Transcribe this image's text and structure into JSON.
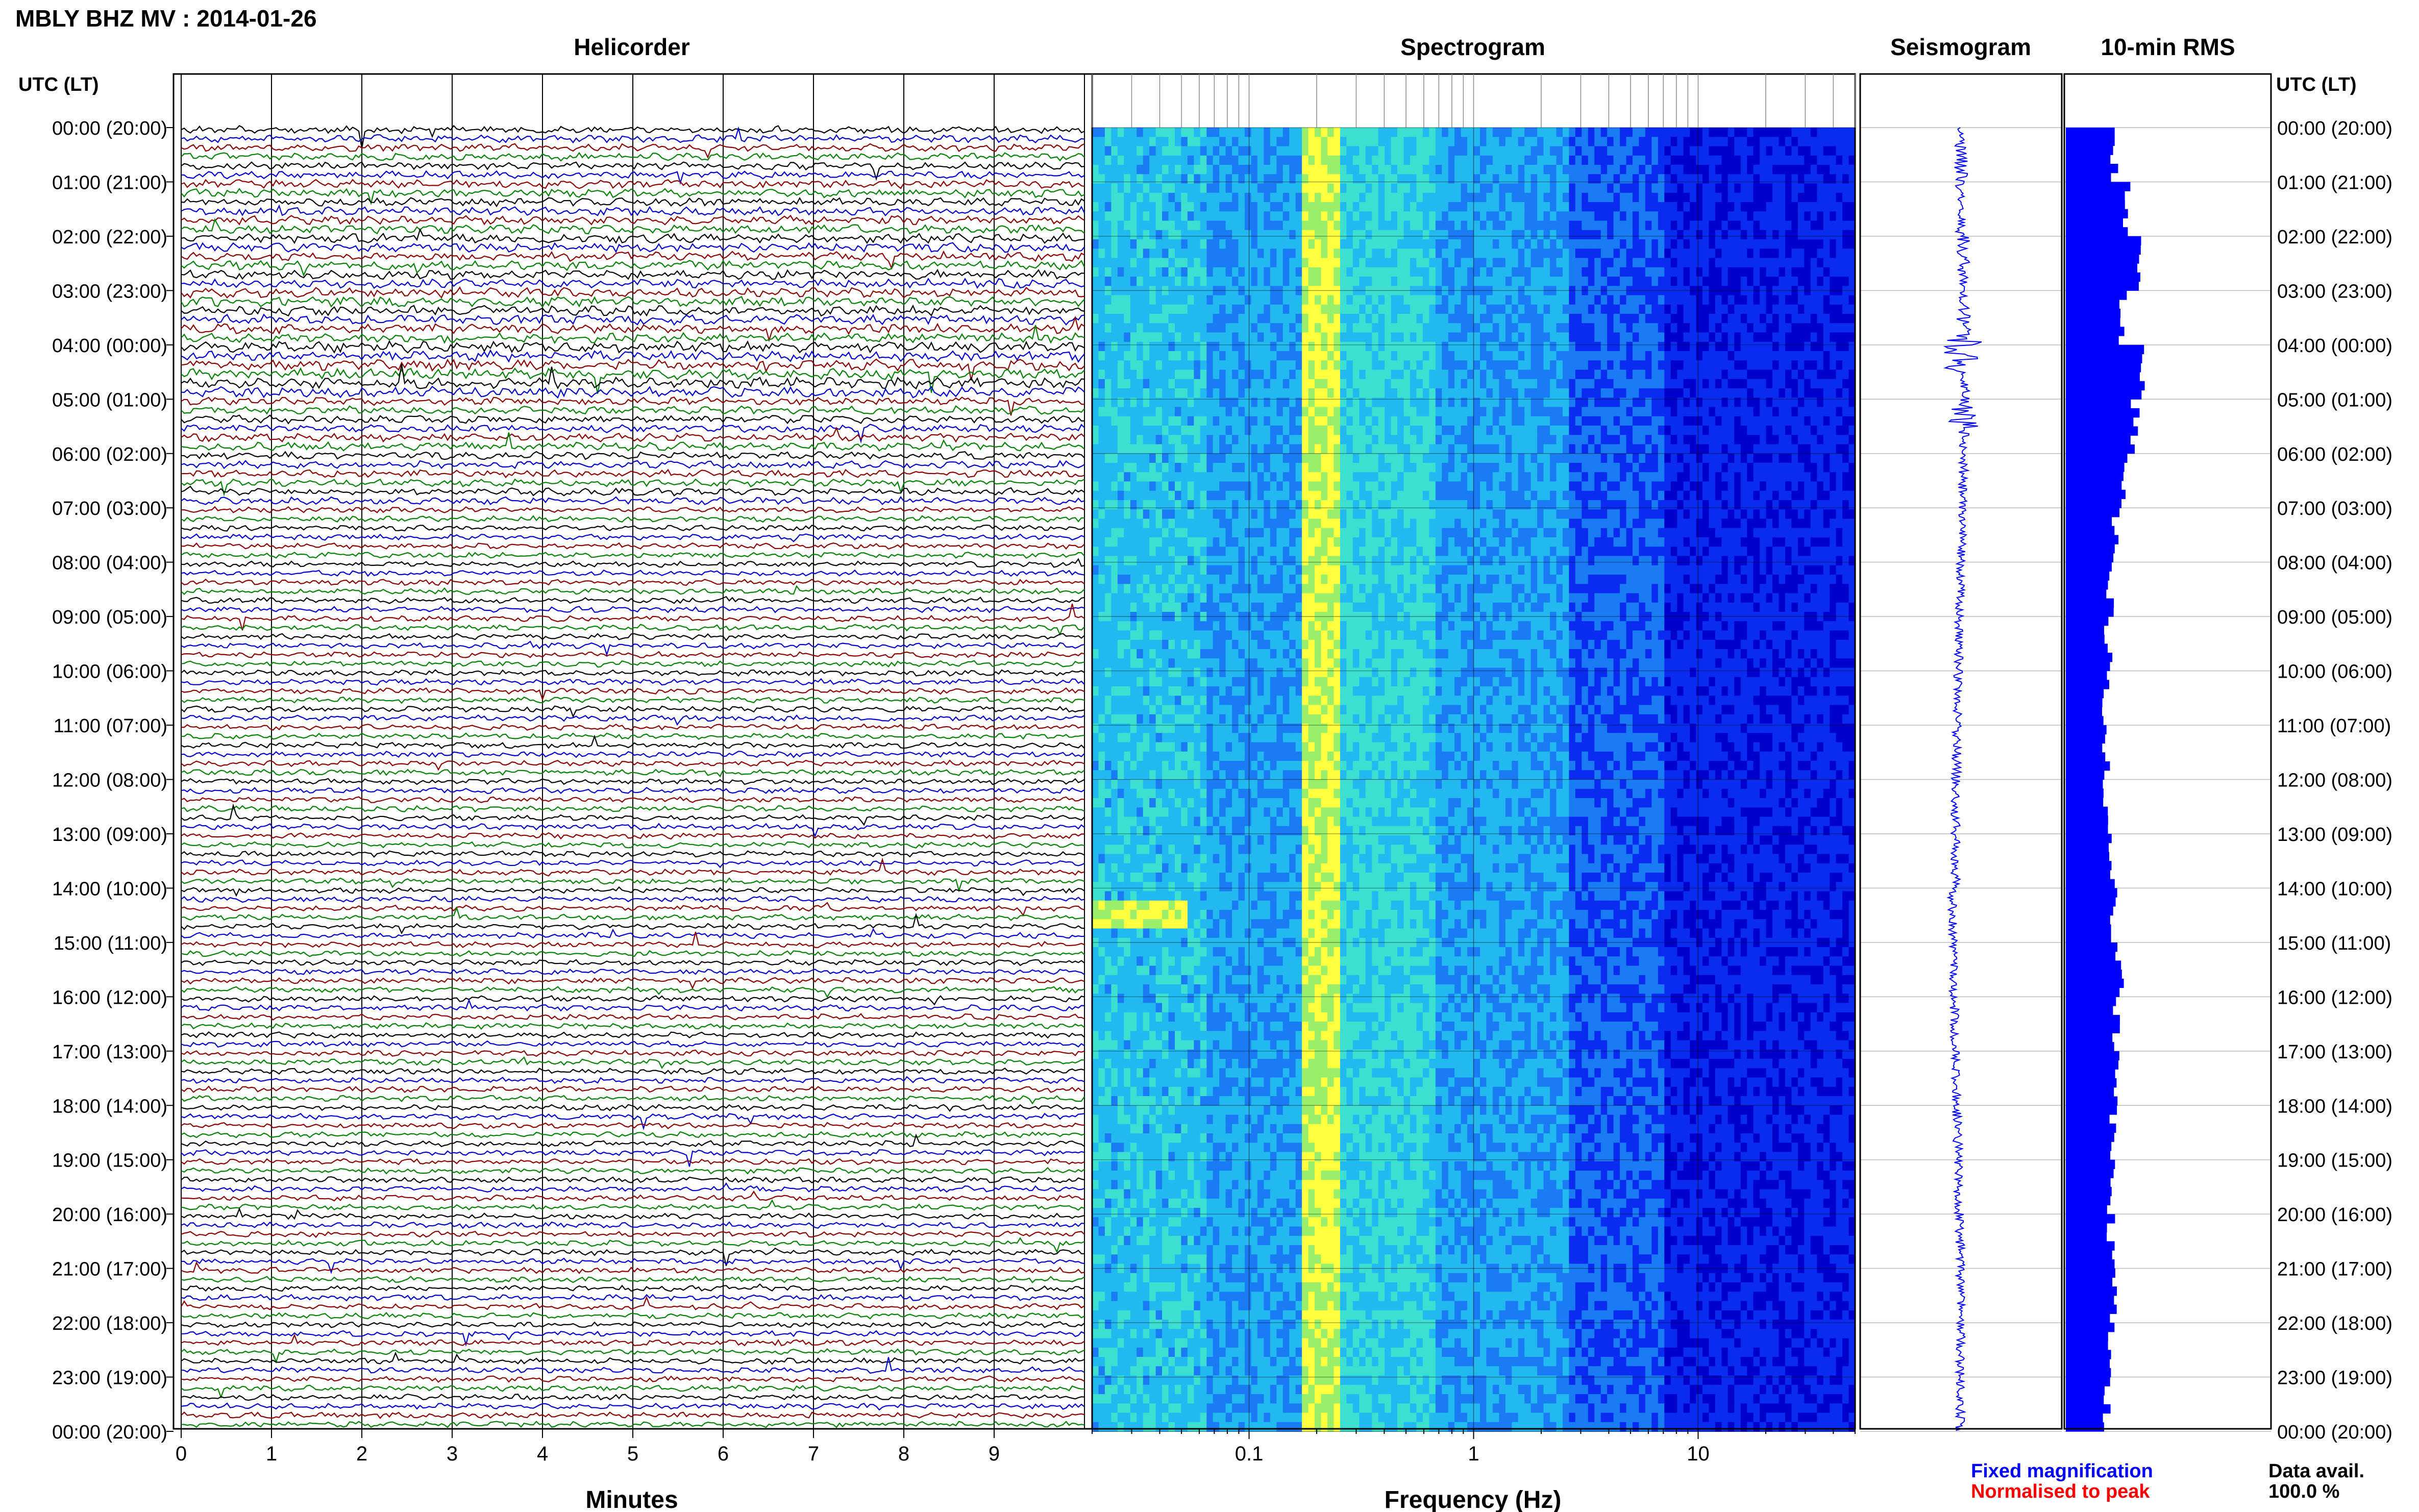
{
  "header": {
    "title": "MBLY BHZ MV : 2014-01-26"
  },
  "chart_data": [
    {
      "type": "line",
      "panel": "helicorder",
      "title": "Helicorder",
      "xlabel": "Minutes",
      "ylabel": "UTC (LT)",
      "x_ticks": [
        "0",
        "1",
        "2",
        "3",
        "4",
        "5",
        "6",
        "7",
        "8",
        "9"
      ],
      "xlim": [
        0,
        10
      ],
      "lines_per_hour": 6,
      "trace_colors": [
        "#000000",
        "#0000cc",
        "#8b0000",
        "#008000"
      ],
      "grid": "vertical per minute"
    },
    {
      "type": "heatmap",
      "panel": "spectrogram",
      "title": "Spectrogram",
      "xlabel": "Frequency (Hz)",
      "x_scale": "log",
      "x_ticks": [
        "0.1",
        "1",
        "10"
      ],
      "xlim": [
        0.02,
        50
      ],
      "colormap": [
        "#0000cc",
        "#0a2cf0",
        "#1a7cf5",
        "#22b8f0",
        "#3de0d0",
        "#9aef6a",
        "#ffff40"
      ]
    },
    {
      "type": "line",
      "panel": "seismogram",
      "title": "Seismogram",
      "color": "#0000ff"
    },
    {
      "type": "bar",
      "panel": "rms",
      "title": "10-min RMS",
      "color": "#0000ff",
      "categories_per_hour": 6,
      "values_hourly": [
        0.6,
        0.75,
        0.9,
        0.7,
        0.95,
        0.85,
        0.72,
        0.62,
        0.55,
        0.52,
        0.5,
        0.5,
        0.5,
        0.58,
        0.6,
        0.65,
        0.62,
        0.6,
        0.58,
        0.55,
        0.55,
        0.6,
        0.55,
        0.5
      ]
    }
  ],
  "y_labels": [
    "00:00 (20:00)",
    "01:00 (21:00)",
    "02:00 (22:00)",
    "03:00 (23:00)",
    "04:00 (00:00)",
    "05:00 (01:00)",
    "06:00 (02:00)",
    "07:00 (03:00)",
    "08:00 (04:00)",
    "09:00 (05:00)",
    "10:00 (06:00)",
    "11:00 (07:00)",
    "12:00 (08:00)",
    "13:00 (09:00)",
    "14:00 (10:00)",
    "15:00 (11:00)",
    "16:00 (12:00)",
    "17:00 (13:00)",
    "18:00 (14:00)",
    "19:00 (15:00)",
    "20:00 (16:00)",
    "21:00 (17:00)",
    "22:00 (18:00)",
    "23:00 (19:00)",
    "00:00 (20:00)"
  ],
  "left_axis_title": "UTC (LT)",
  "right_axis_title": "UTC (LT)",
  "legend": {
    "fixed": "Fixed magnification",
    "fixed_color": "#0000ff",
    "normalised": "Normalised to peak",
    "normalised_color": "#ff0000"
  },
  "data_avail": {
    "label": "Data avail.",
    "value": "100.0 %"
  }
}
